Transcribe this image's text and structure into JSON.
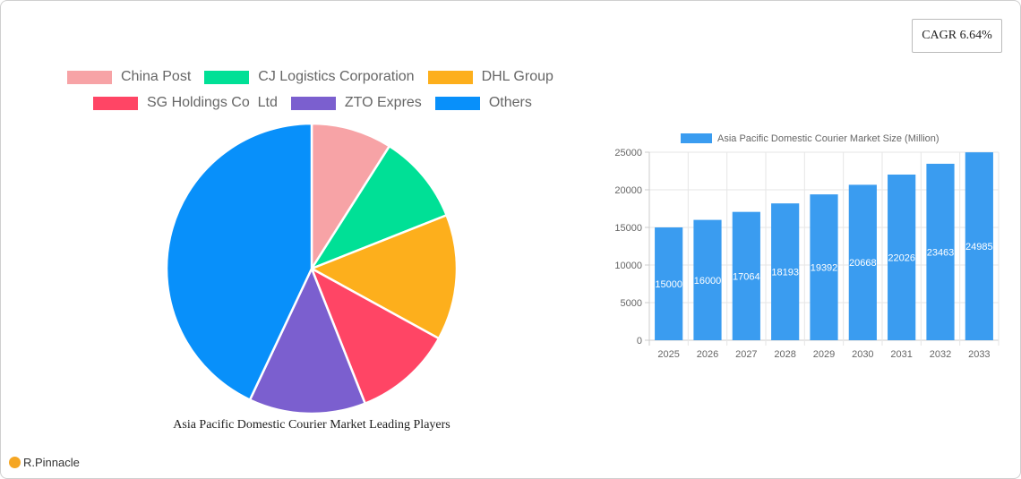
{
  "cagr": {
    "label": "CAGR 6.64%"
  },
  "pie": {
    "title": "Asia Pacific Domestic Courier Market Leading Players",
    "legend": [
      {
        "label": "China Post",
        "color": "#f7a3a6"
      },
      {
        "label": "CJ Logistics Corporation",
        "color": "#00e096"
      },
      {
        "label": "DHL Group",
        "color": "#fdaf1c"
      },
      {
        "label": "SG Holdings Co  Ltd",
        "color": "#ff4565"
      },
      {
        "label": "ZTO Expres",
        "color": "#7b5fcf"
      },
      {
        "label": "Others",
        "color": "#0890fa"
      }
    ]
  },
  "bar": {
    "legend_label": "Asia Pacific Domestic Courier Market Size (Million)",
    "color": "#3a9cf0"
  },
  "logo": {
    "text": "R.Pinnacle"
  },
  "chart_data": [
    {
      "type": "pie",
      "title": "Asia Pacific Domestic Courier Market Leading Players",
      "categories": [
        "China Post",
        "CJ Logistics Corporation",
        "DHL Group",
        "SG Holdings Co  Ltd",
        "ZTO Expres",
        "Others"
      ],
      "values": [
        9,
        10,
        14,
        11,
        13,
        43
      ],
      "colors": [
        "#f7a3a6",
        "#00e096",
        "#fdaf1c",
        "#ff4565",
        "#7b5fcf",
        "#0890fa"
      ],
      "legend_position": "top"
    },
    {
      "type": "bar",
      "title": "",
      "legend": [
        "Asia Pacific Domestic Courier Market Size (Million)"
      ],
      "categories": [
        "2025",
        "2026",
        "2027",
        "2028",
        "2029",
        "2030",
        "2031",
        "2032",
        "2033"
      ],
      "values": [
        15000,
        16000,
        17064,
        18193,
        19392,
        20668,
        22026,
        23463,
        24985
      ],
      "xlabel": "",
      "ylabel": "",
      "ylim": [
        0,
        25000
      ],
      "yticks": [
        0,
        5000,
        10000,
        15000,
        20000,
        25000
      ],
      "grid": true,
      "data_labels": true
    }
  ]
}
